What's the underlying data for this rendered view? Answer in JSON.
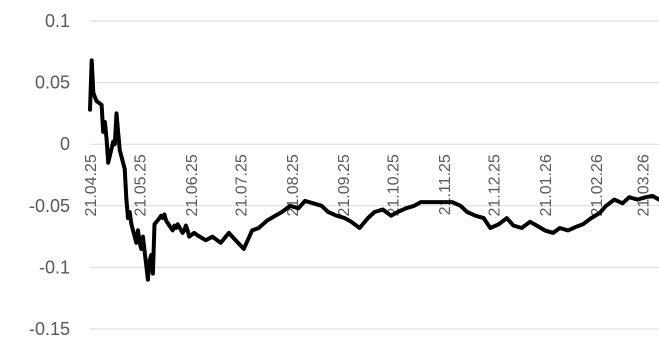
{
  "chart_data": {
    "type": "line",
    "title": "",
    "xlabel": "",
    "ylabel": "",
    "ylim": [
      -0.15,
      0.1
    ],
    "yticks": [
      0.1,
      0.05,
      0,
      -0.05,
      -0.1,
      -0.15
    ],
    "ytick_labels": [
      "0.1",
      "0.05",
      "0",
      "-0.05",
      "-0.1",
      "-0.15"
    ],
    "xlim": [
      "21.04.25",
      "31.03.26"
    ],
    "xticks": [
      "21.04.25",
      "21.05.25",
      "21.06.25",
      "21.07.25",
      "21.08.25",
      "21.09.25",
      "21.10.25",
      "21.11.25",
      "21.12.25",
      "21.01.26",
      "21.02.26",
      "21.03.26"
    ],
    "grid": true,
    "line_color": "#000000",
    "series": [
      {
        "x": [
          "21.04.25",
          "22.04.25",
          "23.04.25",
          "24.04.25",
          "25.04.25",
          "28.04.25",
          "29.04.25",
          "30.04.25",
          "01.05.25",
          "02.05.25",
          "05.05.25",
          "06.05.25",
          "07.05.25",
          "08.05.25",
          "09.05.25",
          "12.05.25",
          "13.05.25",
          "14.05.25",
          "15.05.25",
          "16.05.25",
          "19.05.25",
          "20.05.25",
          "21.05.25",
          "22.05.25",
          "23.05.25",
          "26.05.25",
          "27.05.25",
          "28.05.25",
          "29.05.25",
          "30.05.25",
          "02.06.25",
          "03.06.25",
          "04.06.25",
          "05.06.25",
          "06.06.25",
          "09.06.25",
          "10.06.25",
          "11.06.25",
          "12.06.25",
          "13.06.25",
          "16.06.25",
          "17.06.25",
          "18.06.25",
          "19.06.25",
          "20.06.25",
          "23.06.25",
          "25.06.25",
          "30.06.25",
          "04.07.25",
          "09.07.25",
          "14.07.25",
          "18.07.25",
          "23.07.25",
          "28.07.25",
          "01.08.25",
          "06.08.25",
          "11.08.25",
          "15.08.25",
          "20.08.25",
          "25.08.25",
          "29.08.25",
          "03.09.25",
          "08.09.25",
          "12.09.25",
          "17.09.25",
          "22.09.25",
          "26.09.25",
          "01.10.25",
          "06.10.25",
          "10.10.25",
          "15.10.25",
          "20.10.25",
          "24.10.25",
          "29.10.25",
          "03.11.25",
          "07.11.25",
          "12.11.25",
          "17.11.25",
          "21.11.25",
          "26.11.25",
          "01.12.25",
          "05.12.25",
          "10.12.25",
          "15.12.25",
          "19.12.25",
          "24.12.25",
          "29.12.25",
          "02.01.26",
          "07.01.26",
          "12.01.26",
          "16.01.26",
          "21.01.26",
          "26.01.26",
          "30.01.26",
          "04.02.26",
          "09.02.26",
          "13.02.26",
          "18.02.26",
          "23.02.26",
          "27.02.26",
          "04.03.26",
          "09.03.26",
          "13.03.26",
          "18.03.26",
          "23.03.26",
          "27.03.26",
          "31.03.26"
        ],
        "values": [
          0.028,
          0.068,
          0.042,
          0.038,
          0.035,
          0.032,
          0.01,
          0.018,
          0.005,
          -0.015,
          0.002,
          0.0,
          0.025,
          0.01,
          -0.005,
          -0.02,
          -0.045,
          -0.06,
          -0.055,
          -0.065,
          -0.08,
          -0.07,
          -0.08,
          -0.085,
          -0.075,
          -0.11,
          -0.095,
          -0.09,
          -0.105,
          -0.065,
          -0.06,
          -0.058,
          -0.06,
          -0.057,
          -0.062,
          -0.068,
          -0.07,
          -0.066,
          -0.068,
          -0.065,
          -0.072,
          -0.07,
          -0.066,
          -0.07,
          -0.075,
          -0.072,
          -0.074,
          -0.078,
          -0.075,
          -0.08,
          -0.072,
          -0.078,
          -0.085,
          -0.07,
          -0.068,
          -0.062,
          -0.058,
          -0.055,
          -0.05,
          -0.052,
          -0.046,
          -0.048,
          -0.05,
          -0.055,
          -0.058,
          -0.06,
          -0.063,
          -0.068,
          -0.06,
          -0.055,
          -0.053,
          -0.058,
          -0.055,
          -0.052,
          -0.05,
          -0.047,
          -0.047,
          -0.047,
          -0.047,
          -0.047,
          -0.05,
          -0.055,
          -0.058,
          -0.06,
          -0.068,
          -0.065,
          -0.06,
          -0.066,
          -0.068,
          -0.063,
          -0.066,
          -0.07,
          -0.072,
          -0.068,
          -0.07,
          -0.067,
          -0.065,
          -0.06,
          -0.056,
          -0.05,
          -0.045,
          -0.048,
          -0.043,
          -0.045,
          -0.043,
          -0.042,
          -0.045
        ]
      }
    ]
  }
}
